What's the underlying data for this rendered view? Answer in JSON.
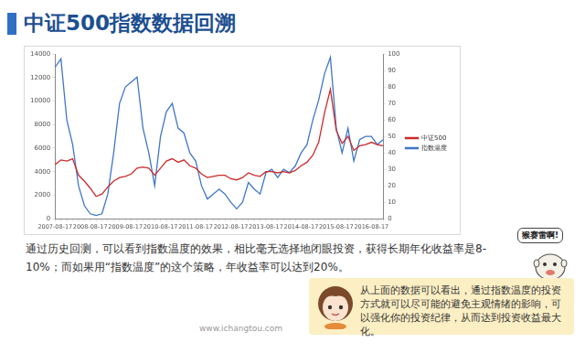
{
  "header": {
    "title": "中证500指数数据回溯"
  },
  "chart_data": {
    "type": "line",
    "categories": [
      "2007-08-17",
      null,
      null,
      null,
      null,
      null,
      "2008-08-17",
      null,
      null,
      null,
      null,
      null,
      "2009-08-17",
      null,
      null,
      null,
      null,
      null,
      "2010-08-17",
      null,
      null,
      null,
      null,
      null,
      "2011-08-17",
      null,
      null,
      null,
      null,
      null,
      "2012-08-17",
      null,
      null,
      null,
      null,
      null,
      "2013-08-17",
      null,
      null,
      null,
      null,
      null,
      "2014-08-17",
      null,
      null,
      null,
      null,
      null,
      "2015-08-17",
      null,
      null,
      null,
      null,
      null,
      "2016-08-17",
      null,
      null
    ],
    "series": [
      {
        "name": "中证500",
        "color": "#cc2a2a",
        "values": [
          4600,
          5000,
          4900,
          5100,
          3700,
          3200,
          2600,
          1900,
          2100,
          2700,
          3200,
          3500,
          3600,
          3800,
          4300,
          4400,
          4300,
          3700,
          4300,
          4900,
          5100,
          4800,
          5000,
          4500,
          4300,
          3800,
          3500,
          3600,
          3700,
          3700,
          3400,
          3300,
          3500,
          3900,
          3700,
          3600,
          4000,
          4000,
          3900,
          4000,
          3900,
          4100,
          4500,
          4800,
          5400,
          6500,
          9000,
          11000,
          7500,
          6400,
          7000,
          5800,
          6200,
          6300,
          6500,
          6300,
          6200
        ]
      },
      {
        "name": "指数温度",
        "color": "#3f76c8",
        "axis": "y2",
        "values": [
          92,
          97,
          60,
          45,
          20,
          8,
          3,
          2,
          3,
          15,
          40,
          70,
          80,
          83,
          86,
          55,
          40,
          20,
          50,
          65,
          70,
          55,
          52,
          40,
          35,
          20,
          12,
          15,
          18,
          15,
          10,
          6,
          10,
          22,
          18,
          15,
          28,
          30,
          25,
          30,
          28,
          32,
          40,
          45,
          60,
          72,
          88,
          98,
          55,
          40,
          55,
          35,
          48,
          50,
          50,
          45,
          48
        ]
      }
    ],
    "ylim": [
      0,
      14000
    ],
    "yticks": [
      0,
      2000,
      4000,
      6000,
      8000,
      10000,
      12000,
      14000
    ],
    "y2lim": [
      0,
      100
    ],
    "y2ticks": [
      0,
      10,
      20,
      30,
      40,
      50,
      60,
      70,
      80,
      90,
      100
    ],
    "grid": false,
    "legend": "right"
  },
  "text": {
    "paragraph": "通过历史回测，可以看到指数温度的效果，相比毫无选择地闭眼投资，获得长期年化收益率是8-10%；而如果用“指数温度”的这个策略，年收益率可以达到20%。",
    "exclaim": "猴赛雷啊!",
    "note": "从上面的数据可以看出，通过指数温度的投资方式就可以尽可能的避免主观情绪的影响，可以强化你的投资纪律，从而达到投资收益最大化。",
    "footer": "www.ichangtou.com"
  }
}
